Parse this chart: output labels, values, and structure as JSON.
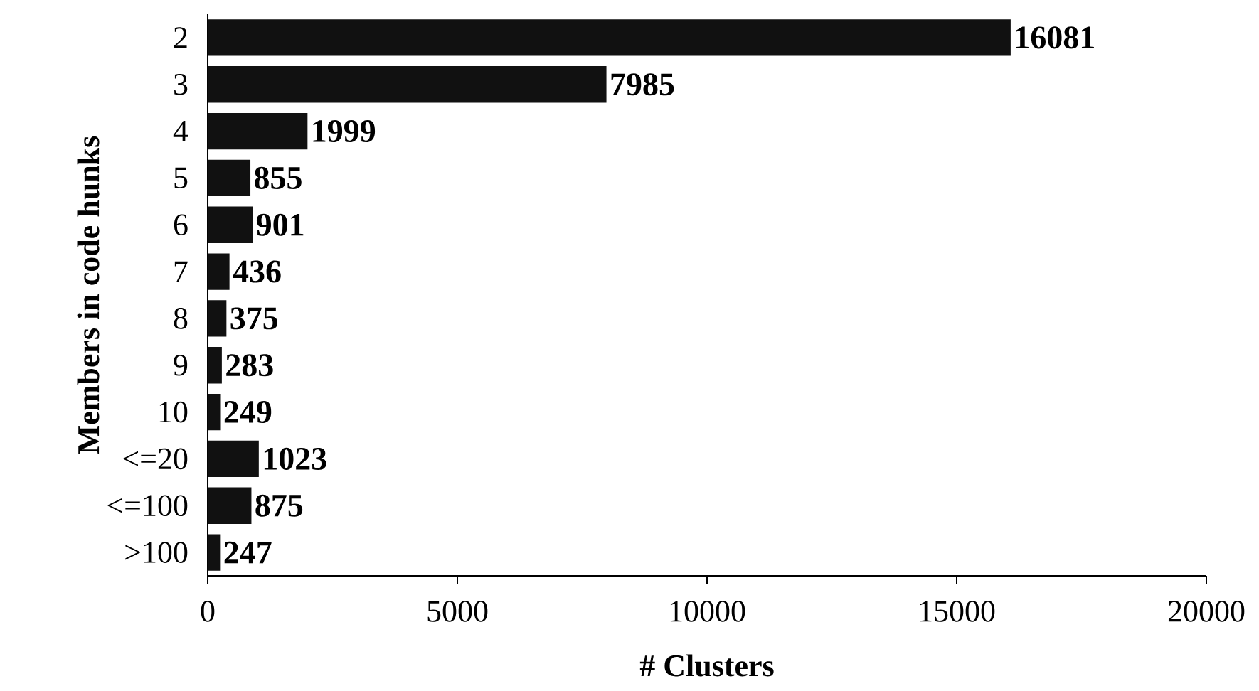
{
  "chart_data": {
    "type": "bar",
    "orientation": "horizontal",
    "categories": [
      "2",
      "3",
      "4",
      "5",
      "6",
      "7",
      "8",
      "9",
      "10",
      "<=20",
      "<=100",
      ">100"
    ],
    "values": [
      16081,
      7985,
      1999,
      855,
      901,
      436,
      375,
      283,
      249,
      1023,
      875,
      247
    ],
    "color": "#111111",
    "data_labels": true,
    "xlabel": "# Clusters",
    "ylabel": "Members in code hunks",
    "xlim": [
      0,
      20000
    ],
    "xticks": [
      0,
      5000,
      10000,
      15000,
      20000
    ]
  }
}
